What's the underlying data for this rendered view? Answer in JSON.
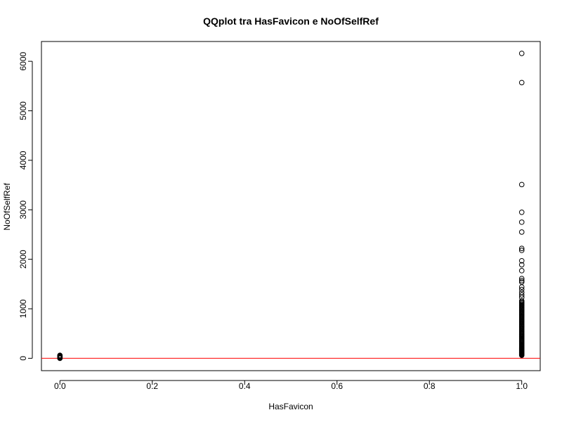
{
  "chart_data": {
    "type": "scatter",
    "title": "QQplot tra HasFavicon e NoOfSelfRef",
    "xlabel": "HasFavicon",
    "ylabel": "NoOfSelfRef",
    "xlim": [
      -0.04,
      1.04
    ],
    "ylim": [
      -250,
      6400
    ],
    "x_ticks": [
      0.0,
      0.2,
      0.4,
      0.6,
      0.8,
      1.0
    ],
    "x_tick_labels": [
      "0.0",
      "0.2",
      "0.4",
      "0.6",
      "0.8",
      "1.0"
    ],
    "y_ticks": [
      0,
      1000,
      2000,
      3000,
      4000,
      5000,
      6000
    ],
    "y_tick_labels": [
      "0",
      "1000",
      "2000",
      "3000",
      "4000",
      "5000",
      "6000"
    ],
    "grid": false,
    "series": [
      {
        "marker": "open-circle",
        "color": "#000000",
        "points": [
          [
            0,
            0
          ],
          [
            0,
            5
          ],
          [
            0,
            10
          ],
          [
            0,
            15
          ],
          [
            0,
            20
          ],
          [
            0,
            25
          ],
          [
            0,
            30
          ],
          [
            0,
            35
          ],
          [
            0,
            40
          ],
          [
            0,
            45
          ],
          [
            0,
            50
          ],
          [
            0,
            55
          ],
          [
            0,
            60
          ],
          [
            1,
            60
          ],
          [
            1,
            70
          ],
          [
            1,
            80
          ],
          [
            1,
            90
          ],
          [
            1,
            100
          ],
          [
            1,
            110
          ],
          [
            1,
            120
          ],
          [
            1,
            130
          ],
          [
            1,
            140
          ],
          [
            1,
            150
          ],
          [
            1,
            160
          ],
          [
            1,
            170
          ],
          [
            1,
            180
          ],
          [
            1,
            190
          ],
          [
            1,
            200
          ],
          [
            1,
            215
          ],
          [
            1,
            230
          ],
          [
            1,
            245
          ],
          [
            1,
            260
          ],
          [
            1,
            275
          ],
          [
            1,
            290
          ],
          [
            1,
            305
          ],
          [
            1,
            320
          ],
          [
            1,
            335
          ],
          [
            1,
            350
          ],
          [
            1,
            365
          ],
          [
            1,
            380
          ],
          [
            1,
            395
          ],
          [
            1,
            410
          ],
          [
            1,
            425
          ],
          [
            1,
            440
          ],
          [
            1,
            455
          ],
          [
            1,
            470
          ],
          [
            1,
            485
          ],
          [
            1,
            500
          ],
          [
            1,
            520
          ],
          [
            1,
            540
          ],
          [
            1,
            560
          ],
          [
            1,
            580
          ],
          [
            1,
            600
          ],
          [
            1,
            620
          ],
          [
            1,
            640
          ],
          [
            1,
            660
          ],
          [
            1,
            680
          ],
          [
            1,
            700
          ],
          [
            1,
            720
          ],
          [
            1,
            740
          ],
          [
            1,
            760
          ],
          [
            1,
            780
          ],
          [
            1,
            800
          ],
          [
            1,
            820
          ],
          [
            1,
            840
          ],
          [
            1,
            860
          ],
          [
            1,
            880
          ],
          [
            1,
            900
          ],
          [
            1,
            920
          ],
          [
            1,
            940
          ],
          [
            1,
            960
          ],
          [
            1,
            980
          ],
          [
            1,
            1000
          ],
          [
            1,
            1020
          ],
          [
            1,
            1040
          ],
          [
            1,
            1060
          ],
          [
            1,
            1080
          ],
          [
            1,
            1100
          ],
          [
            1,
            1120
          ],
          [
            1,
            1140
          ],
          [
            1,
            1160
          ],
          [
            1,
            1230
          ],
          [
            1,
            1280
          ],
          [
            1,
            1330
          ],
          [
            1,
            1390
          ],
          [
            1,
            1440
          ],
          [
            1,
            1540
          ],
          [
            1,
            1570
          ],
          [
            1,
            1610
          ],
          [
            1,
            1770
          ],
          [
            1,
            1890
          ],
          [
            1,
            1970
          ],
          [
            1,
            2180
          ],
          [
            1,
            2220
          ],
          [
            1,
            2550
          ],
          [
            1,
            2750
          ],
          [
            1,
            2950
          ],
          [
            1,
            3510
          ],
          [
            1,
            5570
          ],
          [
            1,
            6160
          ]
        ]
      }
    ],
    "reference_line": {
      "y": 0,
      "color": "#ff0000"
    }
  }
}
